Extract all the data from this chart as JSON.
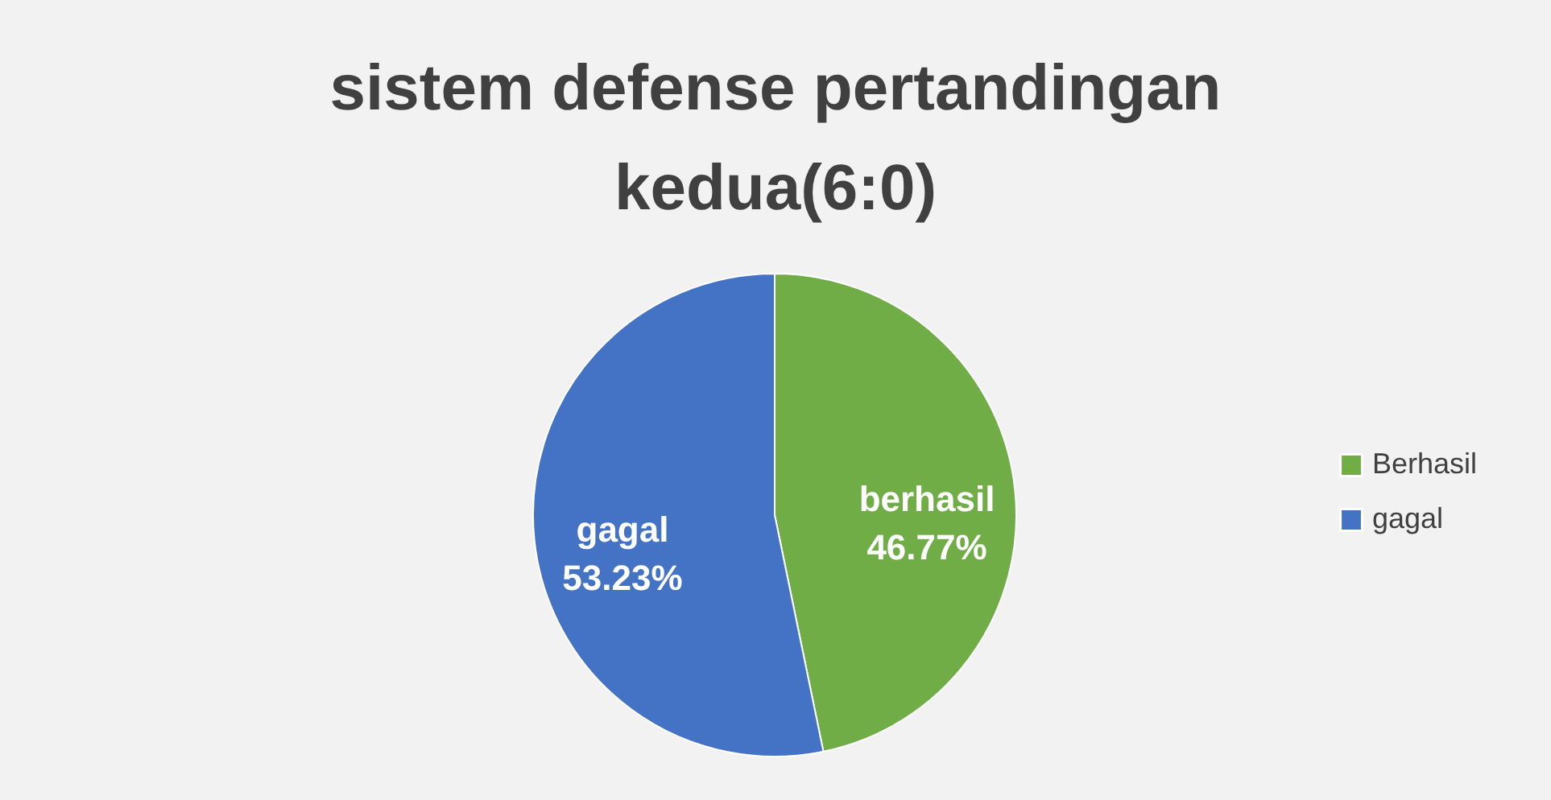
{
  "chart_data": {
    "type": "pie",
    "title": "sistem defense pertandingan kedua(6:0)",
    "categories": [
      "Berhasil",
      "gagal"
    ],
    "values": [
      46.77,
      53.23
    ],
    "colors": [
      "#70ad47",
      "#4472c4"
    ],
    "value_labels": [
      "berhasil\n46.77%",
      "gagal\n53.23%"
    ],
    "legend": "right"
  }
}
